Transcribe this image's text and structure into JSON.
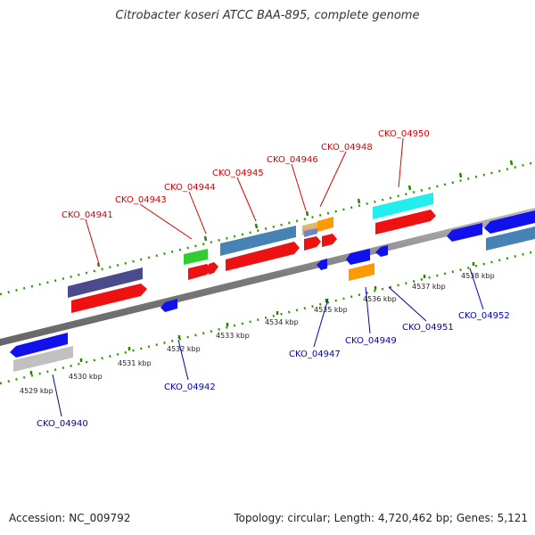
{
  "title": "Citrobacter koseri ATCC BAA-895, complete genome",
  "footer": {
    "accession": "Accession: NC_009792",
    "summary": "Topology: circular; Length: 4,720,462 bp; Genes: 5,121"
  },
  "colors": {
    "forward_label": "#dd0000",
    "reverse_label": "#0000bb",
    "axis": "#888888",
    "tick": "#228800"
  },
  "scale_labels": [
    "4529 kbp",
    "4530 kbp",
    "4531 kbp",
    "4532 kbp",
    "4533 kbp",
    "4534 kbp",
    "4535 kbp",
    "4536 kbp",
    "4537 kbp",
    "4538 kbp"
  ],
  "genes_top": [
    "CKO_04941",
    "CKO_04943",
    "CKO_04944",
    "CKO_04945",
    "CKO_04946",
    "CKO_04948",
    "CKO_04950"
  ],
  "genes_bottom": [
    "CKO_04940",
    "CKO_04942",
    "CKO_04947",
    "CKO_04949",
    "CKO_04951",
    "CKO_04952"
  ]
}
